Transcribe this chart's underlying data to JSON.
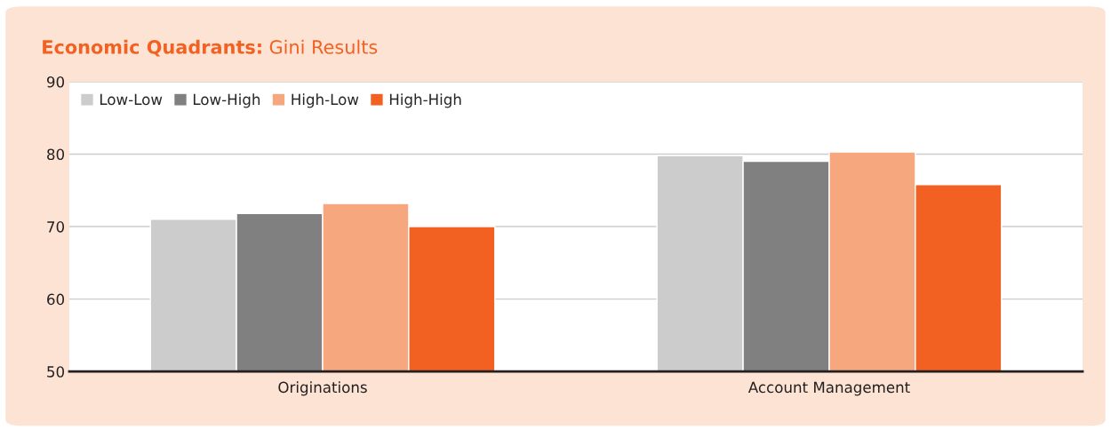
{
  "chart_data": {
    "type": "bar",
    "title": "Economic Quadrants:",
    "subtitle": "Gini Results",
    "categories": [
      "Originations",
      "Account Management"
    ],
    "series": [
      {
        "name": "Low-Low",
        "color": "#cccccc",
        "values": [
          71.0,
          79.8
        ]
      },
      {
        "name": "Low-High",
        "color": "#808080",
        "values": [
          71.8,
          79.0
        ]
      },
      {
        "name": "High-Low",
        "color": "#f7a77e",
        "values": [
          73.2,
          80.3
        ]
      },
      {
        "name": "High-High",
        "color": "#f26122",
        "values": [
          70.0,
          75.8
        ]
      }
    ],
    "ylim": [
      50,
      90
    ],
    "yticks": [
      50,
      60,
      70,
      80,
      90
    ],
    "grid": "y",
    "legend": "top left"
  }
}
